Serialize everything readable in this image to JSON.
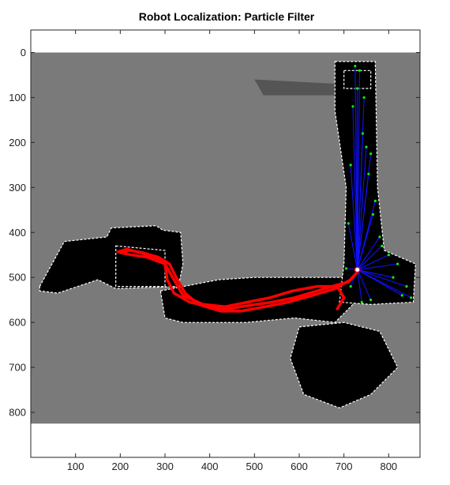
{
  "window": {
    "title": "Robot Localization: Particle Filter"
  },
  "colors": {
    "background": "#ffffff",
    "unknown_space": "#7a7a7a",
    "free_space": "#000000",
    "obstacle": "#ffffff",
    "scan_rays": "#1010ff",
    "particles": "#00ff00",
    "trajectory": "#ff0000",
    "robot_marker": "#ffffff"
  },
  "icons": {
    "robot": "circle-marker-icon"
  },
  "chart_data": {
    "type": "image",
    "title": "Robot Localization: Particle Filter",
    "xlabel": "",
    "ylabel": "",
    "xlim": [
      0,
      870
    ],
    "ylim": [
      900,
      -50
    ],
    "x_ticks": [
      100,
      200,
      300,
      400,
      500,
      600,
      700,
      800
    ],
    "y_ticks": [
      0,
      100,
      200,
      300,
      400,
      500,
      600,
      700,
      800
    ],
    "x_tick_labels": [
      "100",
      "200",
      "300",
      "400",
      "500",
      "600",
      "700",
      "800"
    ],
    "y_tick_labels": [
      "0",
      "100",
      "200",
      "300",
      "400",
      "500",
      "600",
      "700",
      "800"
    ],
    "map_extent": {
      "x": [
        0,
        870
      ],
      "y": [
        0,
        825
      ]
    },
    "free_regions": [
      {
        "name": "left-corridor",
        "points": [
          [
            20,
            520
          ],
          [
            75,
            420
          ],
          [
            170,
            410
          ],
          [
            180,
            390
          ],
          [
            280,
            385
          ],
          [
            295,
            395
          ],
          [
            335,
            400
          ],
          [
            340,
            470
          ],
          [
            330,
            520
          ],
          [
            190,
            525
          ],
          [
            150,
            505
          ],
          [
            60,
            535
          ],
          [
            20,
            530
          ]
        ]
      },
      {
        "name": "upper-left-room",
        "points": [
          [
            190,
            430
          ],
          [
            300,
            440
          ],
          [
            300,
            520
          ],
          [
            190,
            520
          ]
        ]
      },
      {
        "name": "horizontal-corridor",
        "points": [
          [
            290,
            530
          ],
          [
            420,
            505
          ],
          [
            500,
            500
          ],
          [
            700,
            500
          ],
          [
            720,
            560
          ],
          [
            680,
            600
          ],
          [
            590,
            590
          ],
          [
            480,
            600
          ],
          [
            340,
            600
          ],
          [
            300,
            590
          ]
        ]
      },
      {
        "name": "vertical-corridor",
        "points": [
          [
            680,
            20
          ],
          [
            770,
            20
          ],
          [
            775,
            300
          ],
          [
            790,
            440
          ],
          [
            860,
            470
          ],
          [
            855,
            555
          ],
          [
            760,
            560
          ],
          [
            690,
            555
          ],
          [
            700,
            470
          ],
          [
            705,
            300
          ],
          [
            680,
            130
          ]
        ]
      },
      {
        "name": "right-top-wall",
        "points": [
          [
            700,
            40
          ],
          [
            760,
            40
          ],
          [
            760,
            80
          ],
          [
            700,
            80
          ]
        ]
      },
      {
        "name": "fan-room",
        "points": [
          [
            600,
            610
          ],
          [
            700,
            600
          ],
          [
            780,
            620
          ],
          [
            820,
            700
          ],
          [
            760,
            760
          ],
          [
            690,
            790
          ],
          [
            610,
            760
          ],
          [
            580,
            680
          ]
        ]
      }
    ],
    "side_regions": [
      {
        "name": "upper-shelf",
        "points": [
          [
            500,
            60
          ],
          [
            690,
            70
          ],
          [
            690,
            95
          ],
          [
            520,
            95
          ]
        ]
      }
    ],
    "robot_position": {
      "x": 730,
      "y": 483
    },
    "trajectory": {
      "name": "",
      "points": [
        [
          195,
          443
        ],
        [
          215,
          437
        ],
        [
          245,
          445
        ],
        [
          275,
          455
        ],
        [
          300,
          470
        ],
        [
          305,
          505
        ],
        [
          320,
          535
        ],
        [
          355,
          555
        ],
        [
          400,
          565
        ],
        [
          440,
          570
        ],
        [
          490,
          562
        ],
        [
          540,
          555
        ],
        [
          590,
          545
        ],
        [
          640,
          530
        ],
        [
          680,
          518
        ],
        [
          710,
          510
        ],
        [
          728,
          490
        ],
        [
          715,
          505
        ],
        [
          680,
          525
        ],
        [
          630,
          540
        ],
        [
          575,
          555
        ],
        [
          525,
          565
        ],
        [
          470,
          575
        ],
        [
          425,
          575
        ],
        [
          375,
          560
        ],
        [
          345,
          535
        ],
        [
          325,
          500
        ],
        [
          310,
          470
        ],
        [
          285,
          455
        ],
        [
          250,
          445
        ],
        [
          220,
          440
        ],
        [
          200,
          445
        ],
        [
          225,
          450
        ],
        [
          260,
          455
        ],
        [
          300,
          470
        ],
        [
          320,
          505
        ],
        [
          340,
          540
        ],
        [
          385,
          560
        ],
        [
          435,
          565
        ],
        [
          485,
          555
        ],
        [
          535,
          545
        ],
        [
          585,
          530
        ],
        [
          640,
          520
        ],
        [
          685,
          520
        ],
        [
          700,
          545
        ],
        [
          685,
          570
        ]
      ]
    },
    "scan_rays": {
      "origin": {
        "x": 730,
        "y": 483
      },
      "endpoints": [
        [
          725,
          30
        ],
        [
          735,
          40
        ],
        [
          745,
          100
        ],
        [
          750,
          210
        ],
        [
          760,
          225
        ],
        [
          770,
          330
        ],
        [
          780,
          410
        ],
        [
          800,
          450
        ],
        [
          820,
          470
        ],
        [
          840,
          520
        ],
        [
          850,
          545
        ],
        [
          760,
          550
        ],
        [
          740,
          555
        ],
        [
          715,
          520
        ],
        [
          705,
          480
        ],
        [
          710,
          380
        ],
        [
          715,
          250
        ],
        [
          720,
          120
        ],
        [
          730,
          80
        ],
        [
          742,
          180
        ],
        [
          755,
          270
        ],
        [
          765,
          360
        ],
        [
          785,
          430
        ],
        [
          810,
          500
        ],
        [
          830,
          540
        ]
      ]
    }
  }
}
